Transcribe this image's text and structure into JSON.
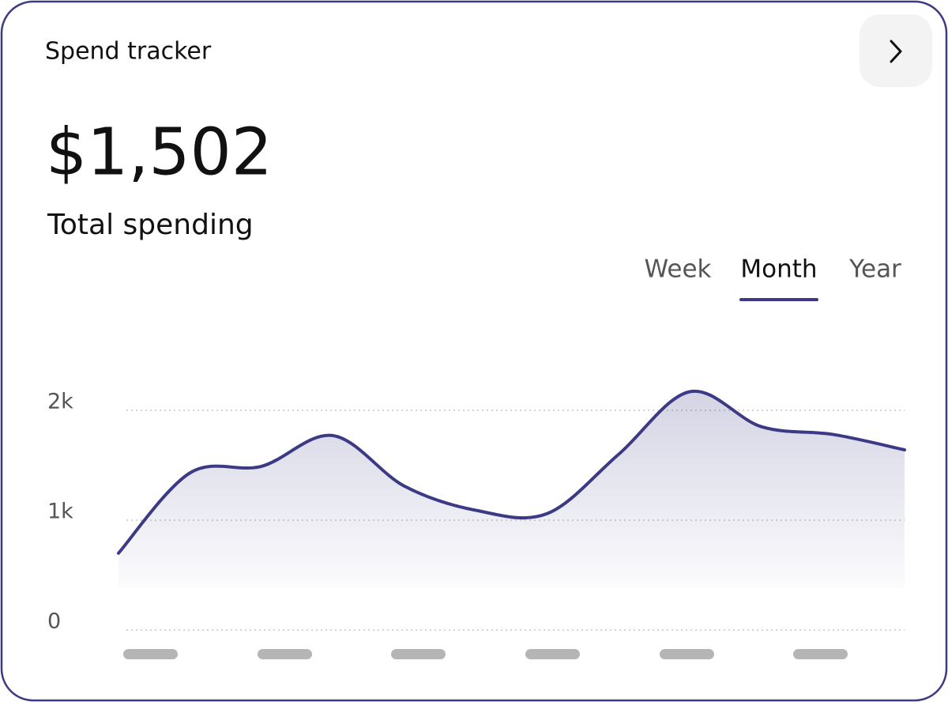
{
  "header": {
    "title": "Spend tracker"
  },
  "summary": {
    "amount": "$1,502",
    "label": "Total spending"
  },
  "tabs": {
    "items": [
      "Week",
      "Month",
      "Year"
    ],
    "active": 1
  },
  "chart_data": {
    "type": "line",
    "categories": [
      null,
      null,
      null,
      null,
      null,
      null,
      null,
      null,
      null,
      null,
      null,
      null
    ],
    "series": [
      {
        "name": null,
        "color": "#3d3a85",
        "values": [
          700,
          1430,
          1490,
          1770,
          1310,
          1090,
          1060,
          1600,
          2170,
          1850,
          1780,
          1640
        ]
      }
    ],
    "ylim": [
      0,
      2000
    ],
    "yticks": [
      {
        "value": 0,
        "label": "0"
      },
      {
        "value": 1000,
        "label": "1k"
      },
      {
        "value": 2000,
        "label": "2k"
      }
    ],
    "grid": true
  }
}
